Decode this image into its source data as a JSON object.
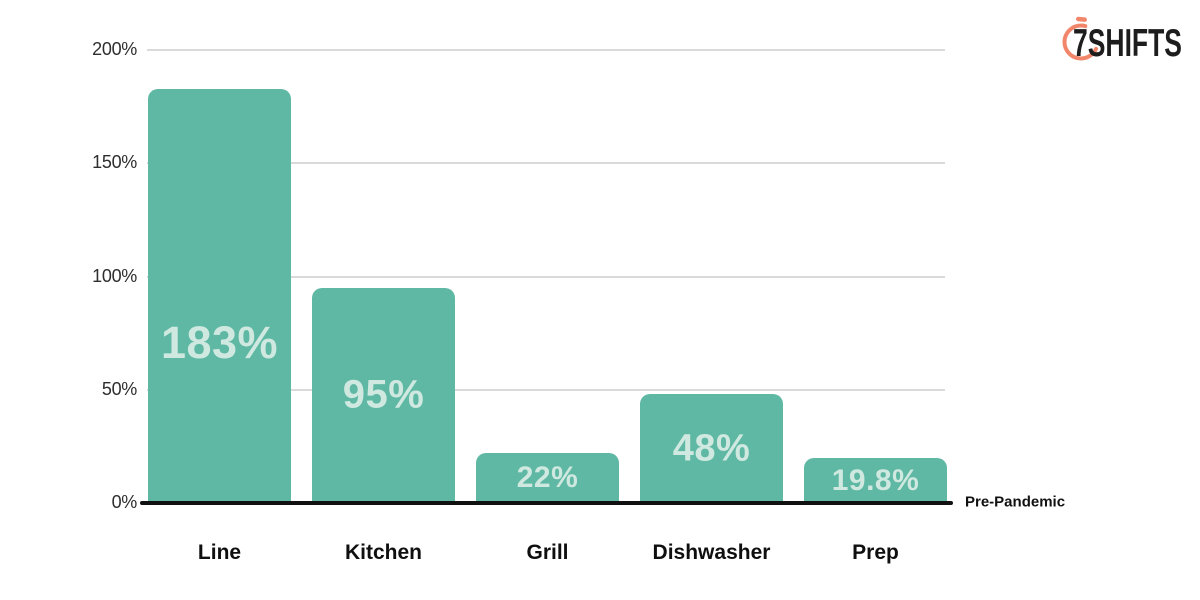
{
  "logo": {
    "text": "7SHIFTS",
    "icon": "stopwatch-icon",
    "icon_color": "#F2866B",
    "text_color": "#1D1D1D"
  },
  "chart_data": {
    "type": "bar",
    "categories": [
      "Line",
      "Kitchen",
      "Grill",
      "Dishwasher",
      "Prep"
    ],
    "values": [
      183,
      95,
      22,
      48,
      19.8
    ],
    "value_labels": [
      "183%",
      "95%",
      "22%",
      "48%",
      "19.8%"
    ],
    "y_axis": {
      "tick_labels": [
        "0%",
        "50%",
        "100%",
        "150%",
        "200%"
      ],
      "tick_values": [
        0,
        50,
        100,
        150,
        200
      ],
      "max": 200
    },
    "baseline_annotation": "Pre-Pandemic",
    "grid": true,
    "legend_position": "none",
    "colors": {
      "bar": "#5FB8A4",
      "value_label": "#CFE8E0",
      "gridline": "#DADADA",
      "baseline": "#111111",
      "tick_label": "#2E2E2E",
      "category_label": "#0F0F0F"
    }
  }
}
